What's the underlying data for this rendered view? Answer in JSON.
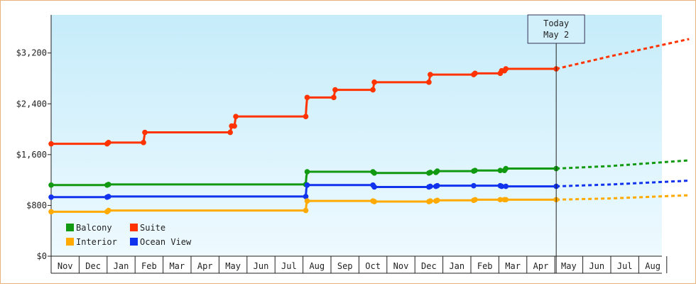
{
  "chart_data": {
    "type": "line",
    "y_ticks": [
      "$0",
      "$800",
      "$1,600",
      "$2,400",
      "$3,200"
    ],
    "y_tick_values": [
      0,
      800,
      1600,
      2400,
      3200
    ],
    "ylim": [
      0,
      3800
    ],
    "x_month_labels": [
      "Nov",
      "Dec",
      "Jan",
      "Feb",
      "Mar",
      "Apr",
      "May",
      "Jun",
      "Jul",
      "Aug",
      "Sep",
      "Oct",
      "Nov",
      "Dec",
      "Jan",
      "Feb",
      "Mar",
      "Apr",
      "May",
      "Jun",
      "Jul",
      "Aug"
    ],
    "x_range_months": [
      0,
      22.8
    ],
    "today": {
      "line1": "Today",
      "line2": "May 2",
      "x": 18.05
    },
    "legend": {
      "position": "bottom-left"
    },
    "grid": false,
    "series": [
      {
        "name": "Suite",
        "color": "#ff3300",
        "x": [
          0,
          2.0,
          2.05,
          3.3,
          3.35,
          6.4,
          6.45,
          6.55,
          6.6,
          9.1,
          9.12,
          9.15,
          10.1,
          10.15,
          11.5,
          11.55,
          13.5,
          13.55,
          15.1,
          15.15,
          16.05,
          16.1,
          16.2,
          16.25,
          18.05
        ],
        "y": [
          1770,
          1770,
          1790,
          1790,
          1950,
          1950,
          2050,
          2050,
          2200,
          2200,
          2350,
          2500,
          2500,
          2620,
          2620,
          2740,
          2740,
          2860,
          2860,
          2880,
          2880,
          2920,
          2920,
          2950,
          2950
        ],
        "markers": [
          [
            0,
            1770
          ],
          [
            2.0,
            1770
          ],
          [
            2.05,
            1790
          ],
          [
            3.3,
            1790
          ],
          [
            3.35,
            1950
          ],
          [
            6.4,
            1950
          ],
          [
            6.45,
            2050
          ],
          [
            6.55,
            2050
          ],
          [
            6.6,
            2200
          ],
          [
            9.1,
            2200
          ],
          [
            9.15,
            2500
          ],
          [
            10.1,
            2500
          ],
          [
            10.15,
            2620
          ],
          [
            11.5,
            2620
          ],
          [
            11.55,
            2740
          ],
          [
            13.5,
            2740
          ],
          [
            13.55,
            2860
          ],
          [
            15.1,
            2860
          ],
          [
            15.15,
            2880
          ],
          [
            16.05,
            2880
          ],
          [
            16.1,
            2920
          ],
          [
            16.2,
            2920
          ],
          [
            16.25,
            2950
          ],
          [
            18.05,
            2950
          ]
        ],
        "projection_x": [
          18.05,
          20,
          22.8
        ],
        "projection_y": [
          2950,
          3150,
          3420
        ]
      },
      {
        "name": "Balcony",
        "color": "#119911",
        "x": [
          0,
          2.0,
          2.05,
          9.1,
          9.12,
          9.15,
          11.5,
          11.55,
          13.5,
          13.55,
          13.75,
          13.8,
          15.1,
          15.15,
          16.05,
          16.1,
          16.2,
          16.25,
          18.05
        ],
        "y": [
          1120,
          1120,
          1130,
          1130,
          1250,
          1330,
          1330,
          1310,
          1310,
          1320,
          1320,
          1340,
          1340,
          1350,
          1350,
          1350,
          1350,
          1380,
          1380
        ],
        "markers": [
          [
            0,
            1120
          ],
          [
            2.0,
            1120
          ],
          [
            2.05,
            1130
          ],
          [
            9.1,
            1130
          ],
          [
            9.15,
            1330
          ],
          [
            11.5,
            1330
          ],
          [
            11.55,
            1310
          ],
          [
            13.5,
            1310
          ],
          [
            13.55,
            1320
          ],
          [
            13.75,
            1320
          ],
          [
            13.8,
            1340
          ],
          [
            15.1,
            1340
          ],
          [
            15.15,
            1350
          ],
          [
            16.05,
            1350
          ],
          [
            16.2,
            1350
          ],
          [
            16.25,
            1380
          ],
          [
            18.05,
            1380
          ]
        ],
        "projection_x": [
          18.05,
          20,
          22.8
        ],
        "projection_y": [
          1380,
          1420,
          1510
        ]
      },
      {
        "name": "Ocean View",
        "color": "#1133ee",
        "x": [
          0,
          2.0,
          2.05,
          9.1,
          9.12,
          9.15,
          11.5,
          11.55,
          13.5,
          13.55,
          13.75,
          13.8,
          15.1,
          15.15,
          16.05,
          16.1,
          16.2,
          16.25,
          18.05
        ],
        "y": [
          930,
          930,
          940,
          940,
          1060,
          1120,
          1120,
          1090,
          1090,
          1100,
          1100,
          1110,
          1110,
          1110,
          1110,
          1100,
          1100,
          1100,
          1100
        ],
        "markers": [
          [
            0,
            930
          ],
          [
            2.0,
            930
          ],
          [
            2.05,
            940
          ],
          [
            9.1,
            940
          ],
          [
            9.15,
            1120
          ],
          [
            11.5,
            1120
          ],
          [
            11.55,
            1090
          ],
          [
            13.5,
            1090
          ],
          [
            13.55,
            1100
          ],
          [
            13.75,
            1100
          ],
          [
            13.8,
            1110
          ],
          [
            15.1,
            1110
          ],
          [
            16.05,
            1110
          ],
          [
            16.1,
            1100
          ],
          [
            16.25,
            1100
          ],
          [
            18.05,
            1100
          ]
        ],
        "projection_x": [
          18.05,
          20,
          22.8
        ],
        "projection_y": [
          1100,
          1130,
          1190
        ]
      },
      {
        "name": "Interior",
        "color": "#ffaa00",
        "x": [
          0,
          2.0,
          2.05,
          9.1,
          9.12,
          9.15,
          11.5,
          11.55,
          13.5,
          13.55,
          13.75,
          13.8,
          15.1,
          15.15,
          16.05,
          16.1,
          16.2,
          16.25,
          18.05
        ],
        "y": [
          700,
          700,
          720,
          720,
          810,
          870,
          870,
          860,
          860,
          870,
          870,
          880,
          880,
          890,
          890,
          890,
          890,
          890,
          890
        ],
        "markers": [
          [
            0,
            700
          ],
          [
            2.0,
            700
          ],
          [
            2.05,
            720
          ],
          [
            9.1,
            720
          ],
          [
            9.15,
            870
          ],
          [
            11.5,
            870
          ],
          [
            11.55,
            860
          ],
          [
            13.5,
            860
          ],
          [
            13.55,
            870
          ],
          [
            13.75,
            870
          ],
          [
            13.8,
            880
          ],
          [
            15.1,
            880
          ],
          [
            15.15,
            890
          ],
          [
            16.05,
            890
          ],
          [
            16.2,
            890
          ],
          [
            16.25,
            890
          ],
          [
            18.05,
            890
          ]
        ],
        "projection_x": [
          18.05,
          20,
          22.8
        ],
        "projection_y": [
          890,
          910,
          960
        ]
      }
    ],
    "legend_order": [
      "Balcony",
      "Suite",
      "Interior",
      "Ocean View"
    ]
  }
}
